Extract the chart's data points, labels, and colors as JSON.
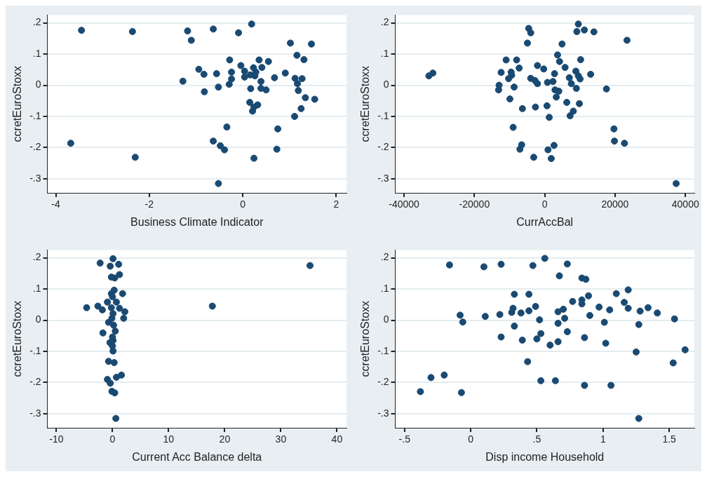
{
  "chart_data": [
    {
      "type": "scatter",
      "xlabel": "Business Climate Indicator",
      "ylabel": "ccretEuroStoxx",
      "color": "#1a4a72",
      "marker": "circle",
      "grid": "y",
      "legend": false,
      "xlim": [
        -4.18,
        2.22
      ],
      "xticks": [
        -4,
        -2,
        0,
        2
      ],
      "ylim": [
        -0.345,
        0.225
      ],
      "yticks": [
        {
          "value": -0.3,
          "label": "-.3"
        },
        {
          "value": -0.2,
          "label": "-.2"
        },
        {
          "value": -0.1,
          "label": "-.1"
        },
        {
          "value": 0,
          "label": "0"
        },
        {
          "value": 0.1,
          "label": ".1"
        },
        {
          "value": 0.2,
          "label": ".2"
        }
      ],
      "x": [
        -3.45,
        -2.36,
        -1.18,
        -1.1,
        -0.63,
        -0.09,
        0.19,
        1.02,
        1.47,
        1.16,
        1.31,
        -0.28,
        0.35,
        0.55,
        -0.04,
        0.41,
        0.23,
        -0.94,
        -0.24,
        0.04,
        0.28,
        -0.83,
        -0.56,
        0.16,
        0.04,
        0.26,
        0.68,
        0.91,
        1.12,
        1.27,
        -0.24,
        -1.28,
        0.39,
        -0.29,
        1.17,
        -0.52,
        0.17,
        0.39,
        0.5,
        1.19,
        -0.82,
        1.34,
        1.54,
        0.15,
        0.32,
        0.24,
        0.21,
        1.25,
        1.11,
        -0.34,
        0.75,
        -3.68,
        -0.63,
        -0.48,
        -0.39,
        0.73,
        -2.3,
        0.24,
        -0.52
      ],
      "values": [
        0.176,
        0.172,
        0.174,
        0.144,
        0.18,
        0.168,
        0.196,
        0.135,
        0.132,
        0.096,
        0.082,
        0.081,
        0.081,
        0.076,
        0.063,
        0.057,
        0.056,
        0.051,
        0.042,
        0.045,
        0.042,
        0.035,
        0.037,
        0.033,
        0.026,
        0.03,
        0.024,
        0.039,
        0.022,
        0.021,
        0.02,
        0.013,
        0.012,
        0.003,
        0.005,
        -0.006,
        -0.011,
        -0.01,
        -0.015,
        -0.017,
        -0.021,
        -0.04,
        -0.045,
        -0.055,
        -0.063,
        -0.07,
        -0.083,
        -0.075,
        -0.1,
        -0.134,
        -0.14,
        -0.186,
        -0.179,
        -0.194,
        -0.207,
        -0.205,
        -0.231,
        -0.234,
        -0.315
      ]
    },
    {
      "type": "scatter",
      "xlabel": "CurrAccBal",
      "ylabel": "ccretEuroStoxx",
      "color": "#1a4a72",
      "marker": "circle",
      "grid": "y",
      "legend": false,
      "xlim": [
        -42500,
        42500
      ],
      "xticks": [
        -40000,
        -20000,
        0,
        20000,
        40000
      ],
      "ylim": [
        -0.345,
        0.225
      ],
      "yticks": [
        {
          "value": -0.3,
          "label": "-.3"
        },
        {
          "value": -0.2,
          "label": "-.2"
        },
        {
          "value": -0.1,
          "label": "-.1"
        },
        {
          "value": 0,
          "label": "0"
        },
        {
          "value": 0.1,
          "label": ".1"
        },
        {
          "value": 0.2,
          "label": ".2"
        }
      ],
      "x": [
        -32940,
        -31800,
        -10980,
        -7990,
        -12400,
        -9550,
        -9410,
        -10270,
        -7270,
        -12980,
        -13120,
        -8700,
        -9910,
        -6350,
        -4560,
        -3990,
        -4920,
        -2070,
        -290,
        -3990,
        -2780,
        -2070,
        -2640,
        640,
        1280,
        780,
        2350,
        2780,
        2920,
        4000,
        3280,
        3640,
        4210,
        4920,
        5780,
        6990,
        7560,
        6270,
        8130,
        7200,
        8840,
        8980,
        9550,
        10050,
        9840,
        10200,
        9550,
        9130,
        11270,
        13980,
        13050,
        17540,
        23390,
        19680,
        19820,
        22670,
        37360,
        -6560,
        -7060,
        -3140,
        930,
        2640,
        1850,
        -8980
      ],
      "values": [
        0.03,
        0.039,
        0.081,
        0.081,
        0.041,
        0.042,
        0.032,
        0.021,
        0.055,
        0.0,
        -0.015,
        -0.006,
        -0.044,
        -0.075,
        0.182,
        0.168,
        0.135,
        0.063,
        0.052,
        0.022,
        0.015,
        0.005,
        -0.07,
        -0.066,
        -0.103,
        0.009,
        0.012,
        0.037,
        -0.015,
        -0.019,
        -0.038,
        0.097,
        0.076,
        0.132,
        0.057,
        0.024,
        0.005,
        -0.055,
        -0.083,
        -0.098,
        0.045,
        -0.01,
        0.03,
        0.02,
        -0.059,
        0.082,
        0.196,
        0.172,
        0.177,
        0.171,
        0.035,
        -0.012,
        0.144,
        -0.14,
        -0.179,
        -0.186,
        -0.315,
        -0.191,
        -0.205,
        -0.231,
        -0.207,
        -0.193,
        -0.235,
        -0.135
      ]
    },
    {
      "type": "scatter",
      "xlabel": "Current Acc Balance delta",
      "ylabel": "ccretEuroStoxx",
      "color": "#1a4a72",
      "marker": "circle",
      "grid": "y",
      "legend": false,
      "xlim": [
        -11.6,
        41.7
      ],
      "xticks": [
        -10,
        0,
        10,
        20,
        30,
        40
      ],
      "ylim": [
        -0.345,
        0.225
      ],
      "yticks": [
        {
          "value": -0.3,
          "label": "-.3"
        },
        {
          "value": -0.2,
          "label": "-.2"
        },
        {
          "value": -0.1,
          "label": "-.1"
        },
        {
          "value": 0,
          "label": "0"
        },
        {
          "value": 0.1,
          "label": ".1"
        },
        {
          "value": 0.2,
          "label": ".2"
        }
      ],
      "x": [
        -4.6,
        -2.2,
        -2.6,
        -1.8,
        -1.7,
        0.1,
        -0.4,
        0.7,
        1.1,
        -0.2,
        0.4,
        1.25,
        0.3,
        -0.2,
        1.8,
        0,
        -0.9,
        0.7,
        1.25,
        2.2,
        2.0,
        -0.2,
        0.1,
        -0.1,
        -0.7,
        0.2,
        0.5,
        0,
        0.1,
        -0.45,
        0,
        0.1,
        -0.7,
        0.3,
        1.6,
        0.7,
        -0.9,
        -0.4,
        -0.1,
        0.4,
        0.6,
        17.8,
        35.2
      ],
      "values": [
        0.04,
        0.183,
        0.045,
        0.033,
        -0.041,
        0.197,
        0.173,
        null,
        0.179,
        0.138,
        0.135,
        0.146,
        0.096,
        0.085,
        0.085,
        0.075,
        0.058,
        0.058,
        0.038,
        0.027,
        0.006,
        0.04,
        0.021,
        0.006,
        -0.007,
        -0.016,
        -0.035,
        -0.054,
        -0.065,
        -0.072,
        -0.083,
        -0.099,
        -0.132,
        -0.136,
        -0.176,
        -0.183,
        -0.19,
        -0.202,
        -0.228,
        -0.233,
        -0.315,
        0.045,
        0.175
      ]
    },
    {
      "type": "scatter",
      "xlabel": "Disp income Household",
      "ylabel": "ccretEuroStoxx",
      "color": "#1a4a72",
      "marker": "circle",
      "grid": "y",
      "legend": false,
      "xlim": [
        -0.57,
        1.69
      ],
      "xticks": [
        {
          "value": -0.5,
          "label": "-.5"
        },
        {
          "value": 0,
          "label": "0"
        },
        {
          "value": 0.5,
          "label": ".5"
        },
        1,
        1.5
      ],
      "ylim": [
        -0.345,
        0.225
      ],
      "yticks": [
        {
          "value": -0.3,
          "label": "-.3"
        },
        {
          "value": -0.2,
          "label": "-.2"
        },
        {
          "value": -0.1,
          "label": "-.1"
        },
        {
          "value": 0,
          "label": "0"
        },
        {
          "value": 0.1,
          "label": ".1"
        },
        {
          "value": 0.2,
          "label": ".2"
        }
      ],
      "x": [
        -0.38,
        -0.3,
        -0.2,
        -0.16,
        -0.08,
        -0.06,
        -0.07,
        0.1,
        0.11,
        0.22,
        0.23,
        0.23,
        0.31,
        0.32,
        0.33,
        0.33,
        0.38,
        0.39,
        0.43,
        0.44,
        0.44,
        0.47,
        0.49,
        0.52,
        0.53,
        0.5,
        0.53,
        0.56,
        0.6,
        0.64,
        0.66,
        0.66,
        0.66,
        0.67,
        0.7,
        0.71,
        0.73,
        0.73,
        0.77,
        0.84,
        0.84,
        0.84,
        0.87,
        0.86,
        0.86,
        0.89,
        0.9,
        0.97,
        1.01,
        1.02,
        1.05,
        1.06,
        1.1,
        1.16,
        1.19,
        1.19,
        1.25,
        1.27,
        1.28,
        1.34,
        1.27,
        1.41,
        1.53,
        1.54,
        1.62
      ],
      "values": [
        -0.229,
        -0.184,
        -0.176,
        0.177,
        0.016,
        -0.006,
        -0.232,
        0.171,
        0.012,
        0.018,
        0.179,
        -0.054,
        0.025,
        0.038,
        0.083,
        -0.019,
        0.023,
        -0.064,
        -0.133,
        0.03,
        0.083,
        0.175,
        0.044,
        0.001,
        -0.043,
        -0.06,
        -0.194,
        0.198,
        -0.08,
        -0.194,
        0.027,
        -0.01,
        -0.069,
        0.142,
        0.035,
        0.006,
        -0.037,
        0.18,
        0.06,
        0.065,
        0.052,
        0.135,
        0.131,
        -0.056,
        -0.209,
        0.078,
        0.015,
        0.042,
        -0.007,
        -0.074,
        0.033,
        -0.209,
        0.085,
        0.057,
        0.097,
        0.038,
        -0.102,
        -0.014,
        0.029,
        0.04,
        -0.315,
        0.023,
        -0.137,
        0.004,
        -0.095
      ]
    }
  ]
}
